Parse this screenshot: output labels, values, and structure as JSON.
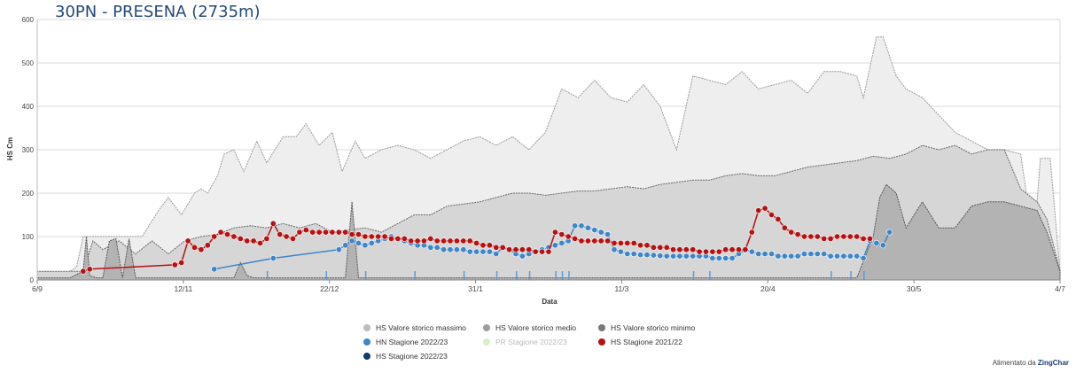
{
  "chart_data": {
    "type": "area",
    "title": "30PN - PRESENA (2735m)",
    "xlabel": "Data",
    "ylabel": "HS Cm",
    "x_start": "6/9",
    "x_end": "4/7",
    "ylim": [
      0,
      600
    ],
    "yticks": [
      0,
      100,
      200,
      300,
      400,
      500,
      600
    ],
    "xticks": [
      "6/9",
      "12/11",
      "22/12",
      "31/1",
      "11/3",
      "20/4",
      "30/5",
      "4/7"
    ],
    "grid": true,
    "legend_position": "bottom",
    "series": [
      {
        "name": "HS Valore storico massimo",
        "color": "#bdbdbd",
        "kind": "area",
        "x": [
          0,
          3,
          8,
          12,
          14,
          18,
          22,
          26,
          30,
          32,
          37,
          40,
          44,
          48,
          50,
          52,
          55,
          57,
          60,
          63,
          67,
          70,
          75,
          79,
          82,
          86,
          90,
          93,
          97,
          100,
          105,
          110,
          115,
          120,
          125,
          130,
          135,
          140,
          145,
          150,
          155,
          160,
          165,
          170,
          175,
          180,
          185,
          190,
          195,
          200,
          205,
          210,
          215,
          220,
          225,
          230,
          235,
          240,
          245,
          250,
          252,
          256,
          258,
          262,
          265,
          270,
          275,
          280,
          285,
          290,
          295,
          300,
          304,
          306,
          309,
          312
        ],
        "y": [
          18,
          20,
          10,
          30,
          100,
          100,
          100,
          100,
          100,
          100,
          160,
          190,
          150,
          200,
          210,
          200,
          240,
          290,
          300,
          250,
          320,
          270,
          330,
          330,
          360,
          310,
          340,
          250,
          320,
          280,
          300,
          310,
          300,
          280,
          300,
          320,
          330,
          310,
          330,
          300,
          340,
          440,
          420,
          460,
          420,
          410,
          450,
          400,
          300,
          470,
          460,
          450,
          480,
          440,
          450,
          460,
          430,
          480,
          480,
          470,
          420,
          560,
          560,
          470,
          440,
          420,
          380,
          340,
          320,
          300,
          300,
          290,
          80,
          280,
          280,
          20
        ]
      },
      {
        "name": "HS Valore storico medio",
        "color": "#9e9e9e",
        "kind": "area",
        "x": [
          0,
          10,
          14,
          17,
          20,
          25,
          30,
          35,
          40,
          45,
          50,
          55,
          60,
          65,
          70,
          75,
          80,
          85,
          90,
          95,
          100,
          105,
          110,
          115,
          120,
          125,
          130,
          135,
          140,
          145,
          150,
          155,
          160,
          165,
          170,
          175,
          180,
          185,
          190,
          195,
          200,
          205,
          210,
          215,
          220,
          225,
          230,
          235,
          240,
          245,
          250,
          255,
          260,
          265,
          270,
          275,
          280,
          285,
          290,
          295,
          300,
          305,
          308,
          312
        ],
        "y": [
          20,
          20,
          20,
          90,
          70,
          90,
          60,
          90,
          60,
          90,
          100,
          105,
          120,
          125,
          120,
          130,
          120,
          130,
          110,
          115,
          120,
          110,
          130,
          150,
          150,
          170,
          175,
          180,
          190,
          200,
          200,
          195,
          200,
          205,
          205,
          210,
          215,
          210,
          220,
          225,
          230,
          230,
          240,
          245,
          240,
          240,
          250,
          260,
          265,
          270,
          275,
          285,
          280,
          290,
          310,
          300,
          310,
          290,
          300,
          300,
          210,
          180,
          140,
          20
        ]
      },
      {
        "name": "HS Valore storico minimo",
        "color": "#777777",
        "kind": "area",
        "x": [
          0,
          10,
          14,
          15,
          16,
          18,
          20,
          22,
          24,
          26,
          28,
          30,
          60,
          62,
          64,
          66,
          70,
          75,
          80,
          85,
          90,
          94,
          96,
          98,
          100,
          110,
          120,
          125,
          130,
          140,
          150,
          160,
          170,
          180,
          190,
          200,
          210,
          220,
          230,
          240,
          245,
          250,
          255,
          257,
          259,
          262,
          265,
          270,
          275,
          280,
          285,
          290,
          295,
          300,
          305,
          308,
          312
        ],
        "y": [
          5,
          5,
          20,
          100,
          10,
          5,
          5,
          90,
          95,
          5,
          95,
          5,
          5,
          40,
          10,
          5,
          5,
          5,
          5,
          5,
          5,
          5,
          180,
          5,
          5,
          5,
          5,
          5,
          5,
          5,
          5,
          5,
          5,
          5,
          5,
          5,
          5,
          5,
          5,
          5,
          5,
          5,
          100,
          190,
          220,
          200,
          120,
          180,
          120,
          120,
          170,
          180,
          180,
          170,
          160,
          110,
          20
        ]
      },
      {
        "name": "HN Stagione 2022/23",
        "color": "#3f86c7",
        "kind": "points",
        "x": [
          54,
          72,
          92,
          94,
          96,
          98,
          100,
          102,
          104,
          106,
          108,
          110,
          112,
          114,
          116,
          118,
          120,
          122,
          124,
          126,
          128,
          130,
          132,
          134,
          136,
          138,
          140,
          142,
          144,
          146,
          148,
          150,
          152,
          154,
          156,
          158,
          160,
          162,
          164,
          166,
          168,
          170,
          172,
          174,
          176,
          178,
          180,
          182,
          184,
          186,
          188,
          190,
          192,
          194,
          196,
          198,
          200,
          202,
          204,
          206,
          208,
          210,
          212,
          214,
          216,
          218,
          220,
          222,
          224,
          226,
          228,
          230,
          232,
          234,
          236,
          238,
          240,
          242,
          244,
          246,
          248,
          250,
          252,
          254,
          256,
          258,
          260
        ],
        "y": [
          25,
          50,
          70,
          80,
          90,
          85,
          80,
          85,
          90,
          95,
          100,
          95,
          90,
          85,
          80,
          80,
          75,
          75,
          70,
          70,
          70,
          70,
          65,
          65,
          65,
          65,
          60,
          75,
          70,
          60,
          55,
          60,
          65,
          70,
          75,
          80,
          85,
          90,
          125,
          125,
          120,
          115,
          110,
          105,
          70,
          65,
          60,
          60,
          58,
          58,
          57,
          56,
          55,
          55,
          55,
          55,
          55,
          55,
          55,
          50,
          50,
          50,
          50,
          60,
          70,
          65,
          60,
          60,
          60,
          55,
          55,
          55,
          55,
          60,
          60,
          60,
          60,
          55,
          55,
          55,
          55,
          55,
          50,
          90,
          85,
          80,
          110
        ]
      },
      {
        "name": "PR Stagione 2022/23",
        "color": "#d7f0c7",
        "kind": "points",
        "x": [],
        "y": []
      },
      {
        "name": "HS Stagione 2021/22",
        "color": "#b51212",
        "kind": "points",
        "x": [
          14,
          16,
          42,
          44,
          46,
          48,
          50,
          52,
          54,
          56,
          58,
          60,
          62,
          64,
          66,
          68,
          70,
          72,
          74,
          76,
          78,
          80,
          82,
          84,
          86,
          88,
          90,
          92,
          94,
          96,
          98,
          100,
          102,
          104,
          106,
          108,
          110,
          112,
          114,
          116,
          118,
          120,
          122,
          124,
          126,
          128,
          130,
          132,
          134,
          136,
          138,
          140,
          142,
          144,
          146,
          148,
          150,
          152,
          154,
          156,
          158,
          160,
          162,
          164,
          166,
          168,
          170,
          172,
          174,
          176,
          178,
          180,
          182,
          184,
          186,
          188,
          190,
          192,
          194,
          196,
          198,
          200,
          202,
          204,
          206,
          208,
          210,
          212,
          214,
          216,
          218,
          220,
          222,
          224,
          226,
          228,
          230,
          232,
          234,
          236,
          238,
          240,
          242,
          244,
          246,
          248,
          250,
          252,
          254
        ],
        "y": [
          20,
          25,
          35,
          40,
          90,
          75,
          70,
          80,
          100,
          110,
          105,
          100,
          95,
          90,
          90,
          85,
          95,
          130,
          105,
          100,
          95,
          110,
          115,
          110,
          110,
          110,
          110,
          110,
          110,
          105,
          105,
          100,
          100,
          100,
          100,
          95,
          95,
          95,
          90,
          90,
          90,
          95,
          90,
          90,
          90,
          90,
          90,
          90,
          85,
          80,
          80,
          75,
          75,
          70,
          70,
          70,
          70,
          65,
          65,
          65,
          110,
          105,
          100,
          95,
          90,
          90,
          90,
          90,
          90,
          85,
          85,
          85,
          85,
          80,
          80,
          75,
          75,
          75,
          70,
          70,
          70,
          70,
          65,
          65,
          65,
          65,
          70,
          70,
          70,
          70,
          110,
          160,
          165,
          150,
          140,
          120,
          110,
          105,
          100,
          100,
          100,
          95,
          95,
          100,
          100,
          100,
          100,
          95,
          95
        ]
      }
    ]
  },
  "legend": {
    "max": "HS Valore storico massimo",
    "avg": "HS Valore storico medio",
    "min": "HS Valore storico minimo",
    "hn": "HN Stagione 2022/23",
    "pr": "PR Stagione 2022/23",
    "hs2122": "HS Stagione 2021/22",
    "hs2223": "HS Stagione 2022/23"
  },
  "credit": {
    "prefix": "Alimentato da",
    "brand": "ZingChar"
  }
}
